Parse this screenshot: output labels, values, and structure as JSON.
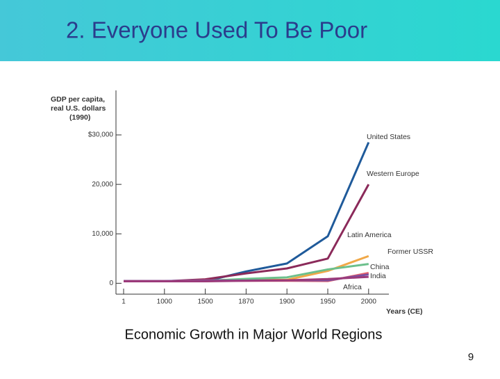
{
  "slide_title": "2. Everyone Used To Be Poor",
  "caption": "Economic Growth in Major World Regions",
  "page_number": "9",
  "chart_data": {
    "type": "line",
    "ylabel": [
      "GDP per capita,",
      "real U.S. dollars",
      "(1990)"
    ],
    "xlabel": "Years (CE)",
    "categories": [
      "1",
      "1000",
      "1500",
      "1870",
      "1900",
      "1950",
      "2000"
    ],
    "ylim": [
      -2200,
      39000
    ],
    "yticks": [
      0,
      {
        "value": 10000,
        "label": "10,000"
      },
      {
        "value": 20000,
        "label": "20,000"
      },
      {
        "value": 30000,
        "label": "$30,000"
      }
    ],
    "series": [
      {
        "name": "United States",
        "color": "#1f5a9a",
        "values": [
          400,
          400,
          400,
          2400,
          4000,
          9500,
          28500
        ]
      },
      {
        "name": "Western Europe",
        "color": "#8b2a5a",
        "values": [
          450,
          400,
          800,
          2000,
          3000,
          5000,
          20000
        ]
      },
      {
        "name": "Latin America",
        "color": "#f0a848",
        "values": [
          400,
          400,
          400,
          700,
          700,
          2500,
          5500
        ]
      },
      {
        "name": "Former USSR",
        "color": "#6cc08c",
        "values": [
          400,
          400,
          500,
          900,
          1200,
          2800,
          3900
        ]
      },
      {
        "name": "China",
        "color": "#e8606a",
        "values": [
          450,
          450,
          600,
          500,
          500,
          450,
          2100
        ]
      },
      {
        "name": "India",
        "color": "#7b4fa0",
        "values": [
          450,
          450,
          550,
          550,
          600,
          600,
          1800
        ]
      },
      {
        "name": "Africa",
        "color": "#9b3a7a",
        "values": [
          400,
          400,
          400,
          500,
          600,
          850,
          1300
        ]
      }
    ]
  }
}
